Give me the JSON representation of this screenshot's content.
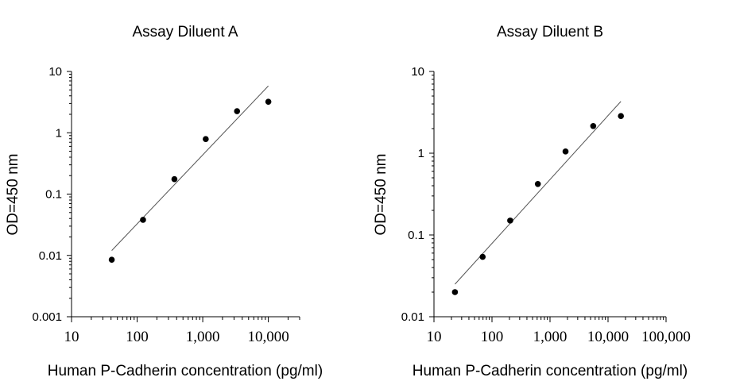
{
  "chart_data": [
    {
      "type": "scatter",
      "title": "Assay Diluent A",
      "xlabel": "Human P-Cadherin concentration (pg/ml)",
      "ylabel": "OD=450 nm",
      "xscale": "log",
      "yscale": "log",
      "xlim": [
        10,
        30000
      ],
      "ylim": [
        0.001,
        10
      ],
      "xticks": [
        "10",
        "100",
        "1,000",
        "10,000"
      ],
      "xtick_values": [
        10,
        100,
        1000,
        10000
      ],
      "yticks": [
        "0.001",
        "0.01",
        "0.1",
        "1",
        "10"
      ],
      "ytick_values": [
        0.001,
        0.01,
        0.1,
        1,
        10
      ],
      "grid": false,
      "series": [
        {
          "x": [
            41,
            123,
            370,
            1111,
            3333,
            10000
          ],
          "y": [
            0.0085,
            0.038,
            0.175,
            0.79,
            2.25,
            3.2
          ]
        }
      ],
      "fit_line": {
        "x": [
          41,
          10000
        ],
        "y": [
          0.012,
          5.8
        ]
      }
    },
    {
      "type": "scatter",
      "title": "Assay Diluent B",
      "xlabel": "Human P-Cadherin concentration (pg/ml)",
      "ylabel": "OD=450 nm",
      "xscale": "log",
      "yscale": "log",
      "xlim": [
        10,
        100000
      ],
      "ylim": [
        0.01,
        10
      ],
      "xticks": [
        "10",
        "100",
        "1,000",
        "10,000",
        "100,000"
      ],
      "xtick_values": [
        10,
        100,
        1000,
        10000,
        100000
      ],
      "yticks": [
        "0.01",
        "0.1",
        "1",
        "10"
      ],
      "ytick_values": [
        0.01,
        0.1,
        1,
        10
      ],
      "grid": false,
      "series": [
        {
          "x": [
            23,
            69,
            206,
            617,
            1852,
            5556,
            16667
          ],
          "y": [
            0.02,
            0.054,
            0.15,
            0.42,
            1.05,
            2.15,
            2.85
          ]
        }
      ],
      "fit_line": {
        "x": [
          23,
          16667
        ],
        "y": [
          0.025,
          4.3
        ]
      }
    }
  ]
}
